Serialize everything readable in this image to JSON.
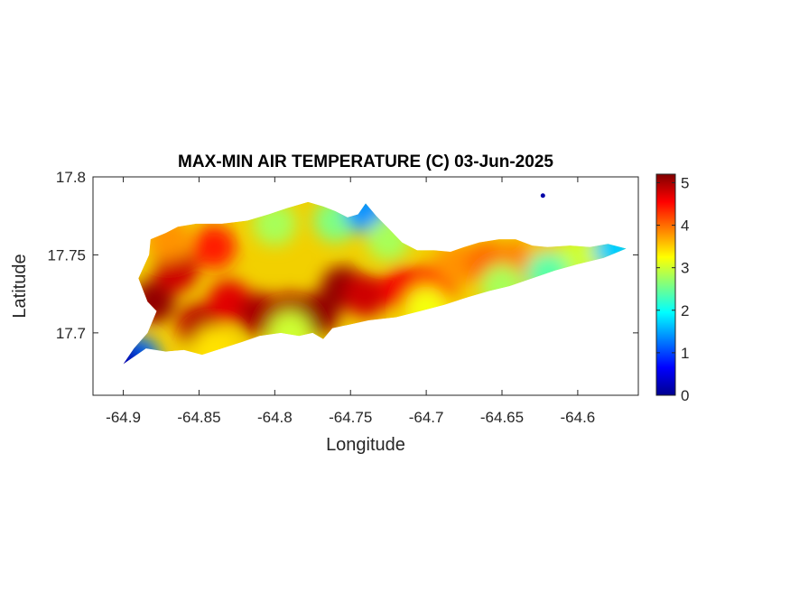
{
  "chart_data": {
    "type": "heatmap",
    "title": "MAX-MIN AIR TEMPERATURE (C) 03-Jun-2025",
    "xlabel": "Longitude",
    "ylabel": "Latitude",
    "xlim": [
      -64.92,
      -64.56
    ],
    "ylim": [
      17.66,
      17.8
    ],
    "xticks": [
      -64.9,
      -64.85,
      -64.8,
      -64.75,
      -64.7,
      -64.65,
      -64.6
    ],
    "xtick_labels": [
      "-64.9",
      "-64.85",
      "-64.8",
      "-64.75",
      "-64.7",
      "-64.65",
      "-64.6"
    ],
    "yticks": [
      17.7,
      17.75,
      17.8
    ],
    "ytick_labels": [
      "17.7",
      "17.75",
      "17.8"
    ],
    "colormap": "jet",
    "colorbar": {
      "range": [
        0,
        5.2
      ],
      "ticks": [
        0,
        1,
        2,
        3,
        4,
        5
      ],
      "tick_labels": [
        "0",
        "1",
        "2",
        "3",
        "4",
        "5"
      ],
      "placement": "right"
    },
    "grid": false,
    "island_outline": [
      [
        -64.883,
        17.75
      ],
      [
        -64.882,
        17.76
      ],
      [
        -64.872,
        17.764
      ],
      [
        -64.864,
        17.768
      ],
      [
        -64.852,
        17.77
      ],
      [
        -64.835,
        17.77
      ],
      [
        -64.818,
        17.772
      ],
      [
        -64.804,
        17.776
      ],
      [
        -64.792,
        17.78
      ],
      [
        -64.778,
        17.784
      ],
      [
        -64.768,
        17.781
      ],
      [
        -64.76,
        17.778
      ],
      [
        -64.752,
        17.774
      ],
      [
        -64.745,
        17.776
      ],
      [
        -64.74,
        17.783
      ],
      [
        -64.733,
        17.775
      ],
      [
        -64.725,
        17.767
      ],
      [
        -64.716,
        17.758
      ],
      [
        -64.706,
        17.753
      ],
      [
        -64.695,
        17.753
      ],
      [
        -64.684,
        17.752
      ],
      [
        -64.675,
        17.755
      ],
      [
        -64.665,
        17.758
      ],
      [
        -64.652,
        17.76
      ],
      [
        -64.641,
        17.76
      ],
      [
        -64.63,
        17.756
      ],
      [
        -64.62,
        17.755
      ],
      [
        -64.605,
        17.756
      ],
      [
        -64.592,
        17.755
      ],
      [
        -64.58,
        17.757
      ],
      [
        -64.568,
        17.754
      ],
      [
        -64.583,
        17.748
      ],
      [
        -64.6,
        17.744
      ],
      [
        -64.615,
        17.74
      ],
      [
        -64.63,
        17.735
      ],
      [
        -64.645,
        17.73
      ],
      [
        -64.658,
        17.727
      ],
      [
        -64.672,
        17.723
      ],
      [
        -64.688,
        17.718
      ],
      [
        -64.704,
        17.714
      ],
      [
        -64.72,
        17.71
      ],
      [
        -64.738,
        17.708
      ],
      [
        -64.752,
        17.705
      ],
      [
        -64.762,
        17.703
      ],
      [
        -64.768,
        17.696
      ],
      [
        -64.775,
        17.7
      ],
      [
        -64.784,
        17.698
      ],
      [
        -64.796,
        17.7
      ],
      [
        -64.81,
        17.698
      ],
      [
        -64.822,
        17.694
      ],
      [
        -64.835,
        17.69
      ],
      [
        -64.848,
        17.686
      ],
      [
        -64.86,
        17.689
      ],
      [
        -64.872,
        17.688
      ],
      [
        -64.885,
        17.69
      ],
      [
        -64.9,
        17.68
      ],
      [
        -64.893,
        17.69
      ],
      [
        -64.884,
        17.7
      ],
      [
        -64.878,
        17.714
      ],
      [
        -64.884,
        17.72
      ],
      [
        -64.89,
        17.735
      ]
    ],
    "temperature_samples": [
      {
        "lon": -64.88,
        "lat": 17.72,
        "value": 5.1
      },
      {
        "lon": -64.865,
        "lat": 17.74,
        "value": 4.8
      },
      {
        "lon": -64.85,
        "lat": 17.705,
        "value": 4.9
      },
      {
        "lon": -64.83,
        "lat": 17.72,
        "value": 4.7
      },
      {
        "lon": -64.81,
        "lat": 17.712,
        "value": 5.0
      },
      {
        "lon": -64.79,
        "lat": 17.712,
        "value": 5.0
      },
      {
        "lon": -64.772,
        "lat": 17.712,
        "value": 5.1
      },
      {
        "lon": -64.755,
        "lat": 17.729,
        "value": 5.1
      },
      {
        "lon": -64.74,
        "lat": 17.724,
        "value": 4.8
      },
      {
        "lon": -64.715,
        "lat": 17.729,
        "value": 4.6
      },
      {
        "lon": -64.695,
        "lat": 17.73,
        "value": 4.4
      },
      {
        "lon": -64.68,
        "lat": 17.744,
        "value": 3.8
      },
      {
        "lon": -64.66,
        "lat": 17.745,
        "value": 4.0
      },
      {
        "lon": -64.64,
        "lat": 17.745,
        "value": 3.9
      },
      {
        "lon": -64.62,
        "lat": 17.746,
        "value": 3.6
      },
      {
        "lon": -64.6,
        "lat": 17.748,
        "value": 3.0
      },
      {
        "lon": -64.575,
        "lat": 17.754,
        "value": 1.7
      },
      {
        "lon": -64.8,
        "lat": 17.77,
        "value": 2.8
      },
      {
        "lon": -64.76,
        "lat": 17.772,
        "value": 2.6
      },
      {
        "lon": -64.74,
        "lat": 17.778,
        "value": 1.4
      },
      {
        "lon": -64.725,
        "lat": 17.76,
        "value": 2.8
      },
      {
        "lon": -64.87,
        "lat": 17.76,
        "value": 3.8
      },
      {
        "lon": -64.84,
        "lat": 17.755,
        "value": 4.4
      },
      {
        "lon": -64.89,
        "lat": 17.684,
        "value": 1.2
      },
      {
        "lon": -64.9,
        "lat": 17.68,
        "value": 0.3
      },
      {
        "lon": -64.84,
        "lat": 17.69,
        "value": 3.4
      },
      {
        "lon": -64.79,
        "lat": 17.7,
        "value": 3.0
      },
      {
        "lon": -64.7,
        "lat": 17.716,
        "value": 3.2
      },
      {
        "lon": -64.65,
        "lat": 17.73,
        "value": 2.8
      },
      {
        "lon": -64.62,
        "lat": 17.738,
        "value": 2.4
      }
    ],
    "islet": {
      "lon": -64.623,
      "lat": 17.788,
      "value": 0.2
    }
  }
}
